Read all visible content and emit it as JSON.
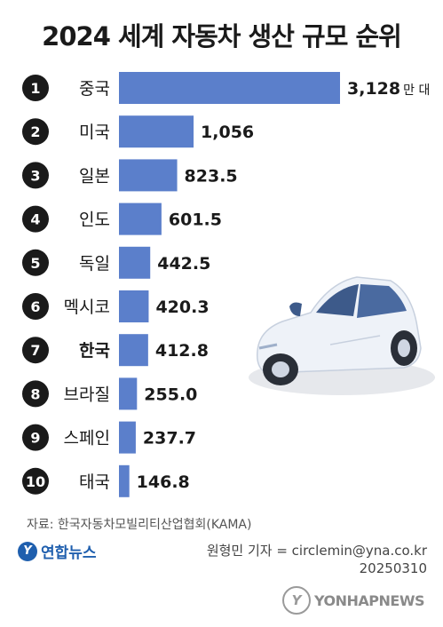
{
  "title": "2024 세계 자동차 생산 규모 순위",
  "chart_data": {
    "type": "bar",
    "orientation": "horizontal",
    "title": "2024 세계 자동차 생산 규모 순위",
    "unit": "만 대",
    "ranks": [
      "1",
      "2",
      "3",
      "4",
      "5",
      "6",
      "7",
      "8",
      "9",
      "10"
    ],
    "categories": [
      "중국",
      "미국",
      "일본",
      "인도",
      "독일",
      "멕시코",
      "한국",
      "브라질",
      "스페인",
      "태국"
    ],
    "values": [
      3128,
      1056,
      823.5,
      601.5,
      442.5,
      420.3,
      412.8,
      255.0,
      237.7,
      146.8
    ],
    "value_labels": [
      "3,128",
      "1,056",
      "823.5",
      "601.5",
      "442.5",
      "420.3",
      "412.8",
      "255.0",
      "237.7",
      "146.8"
    ],
    "highlight": "한국",
    "bar_color": "#5b7fcb",
    "xlim": [
      0,
      3128
    ]
  },
  "source": "자료: 한국자동차모빌리티산업협회(KAMA)",
  "logo": {
    "mark": "Y",
    "text": "연합뉴스"
  },
  "credit": {
    "reporter": "원형민 기자 = circlemin@yna.co.kr",
    "date": "20250310"
  },
  "watermark": {
    "mark": "Y",
    "text": "YONHAPNEWS"
  },
  "colors": {
    "bar": "#5b7fcb",
    "rank_circle": "#1a1a1a",
    "car_body": "#e9eef6",
    "car_window": "#3d5a8a"
  },
  "icons": {
    "car": "car-illustration"
  }
}
